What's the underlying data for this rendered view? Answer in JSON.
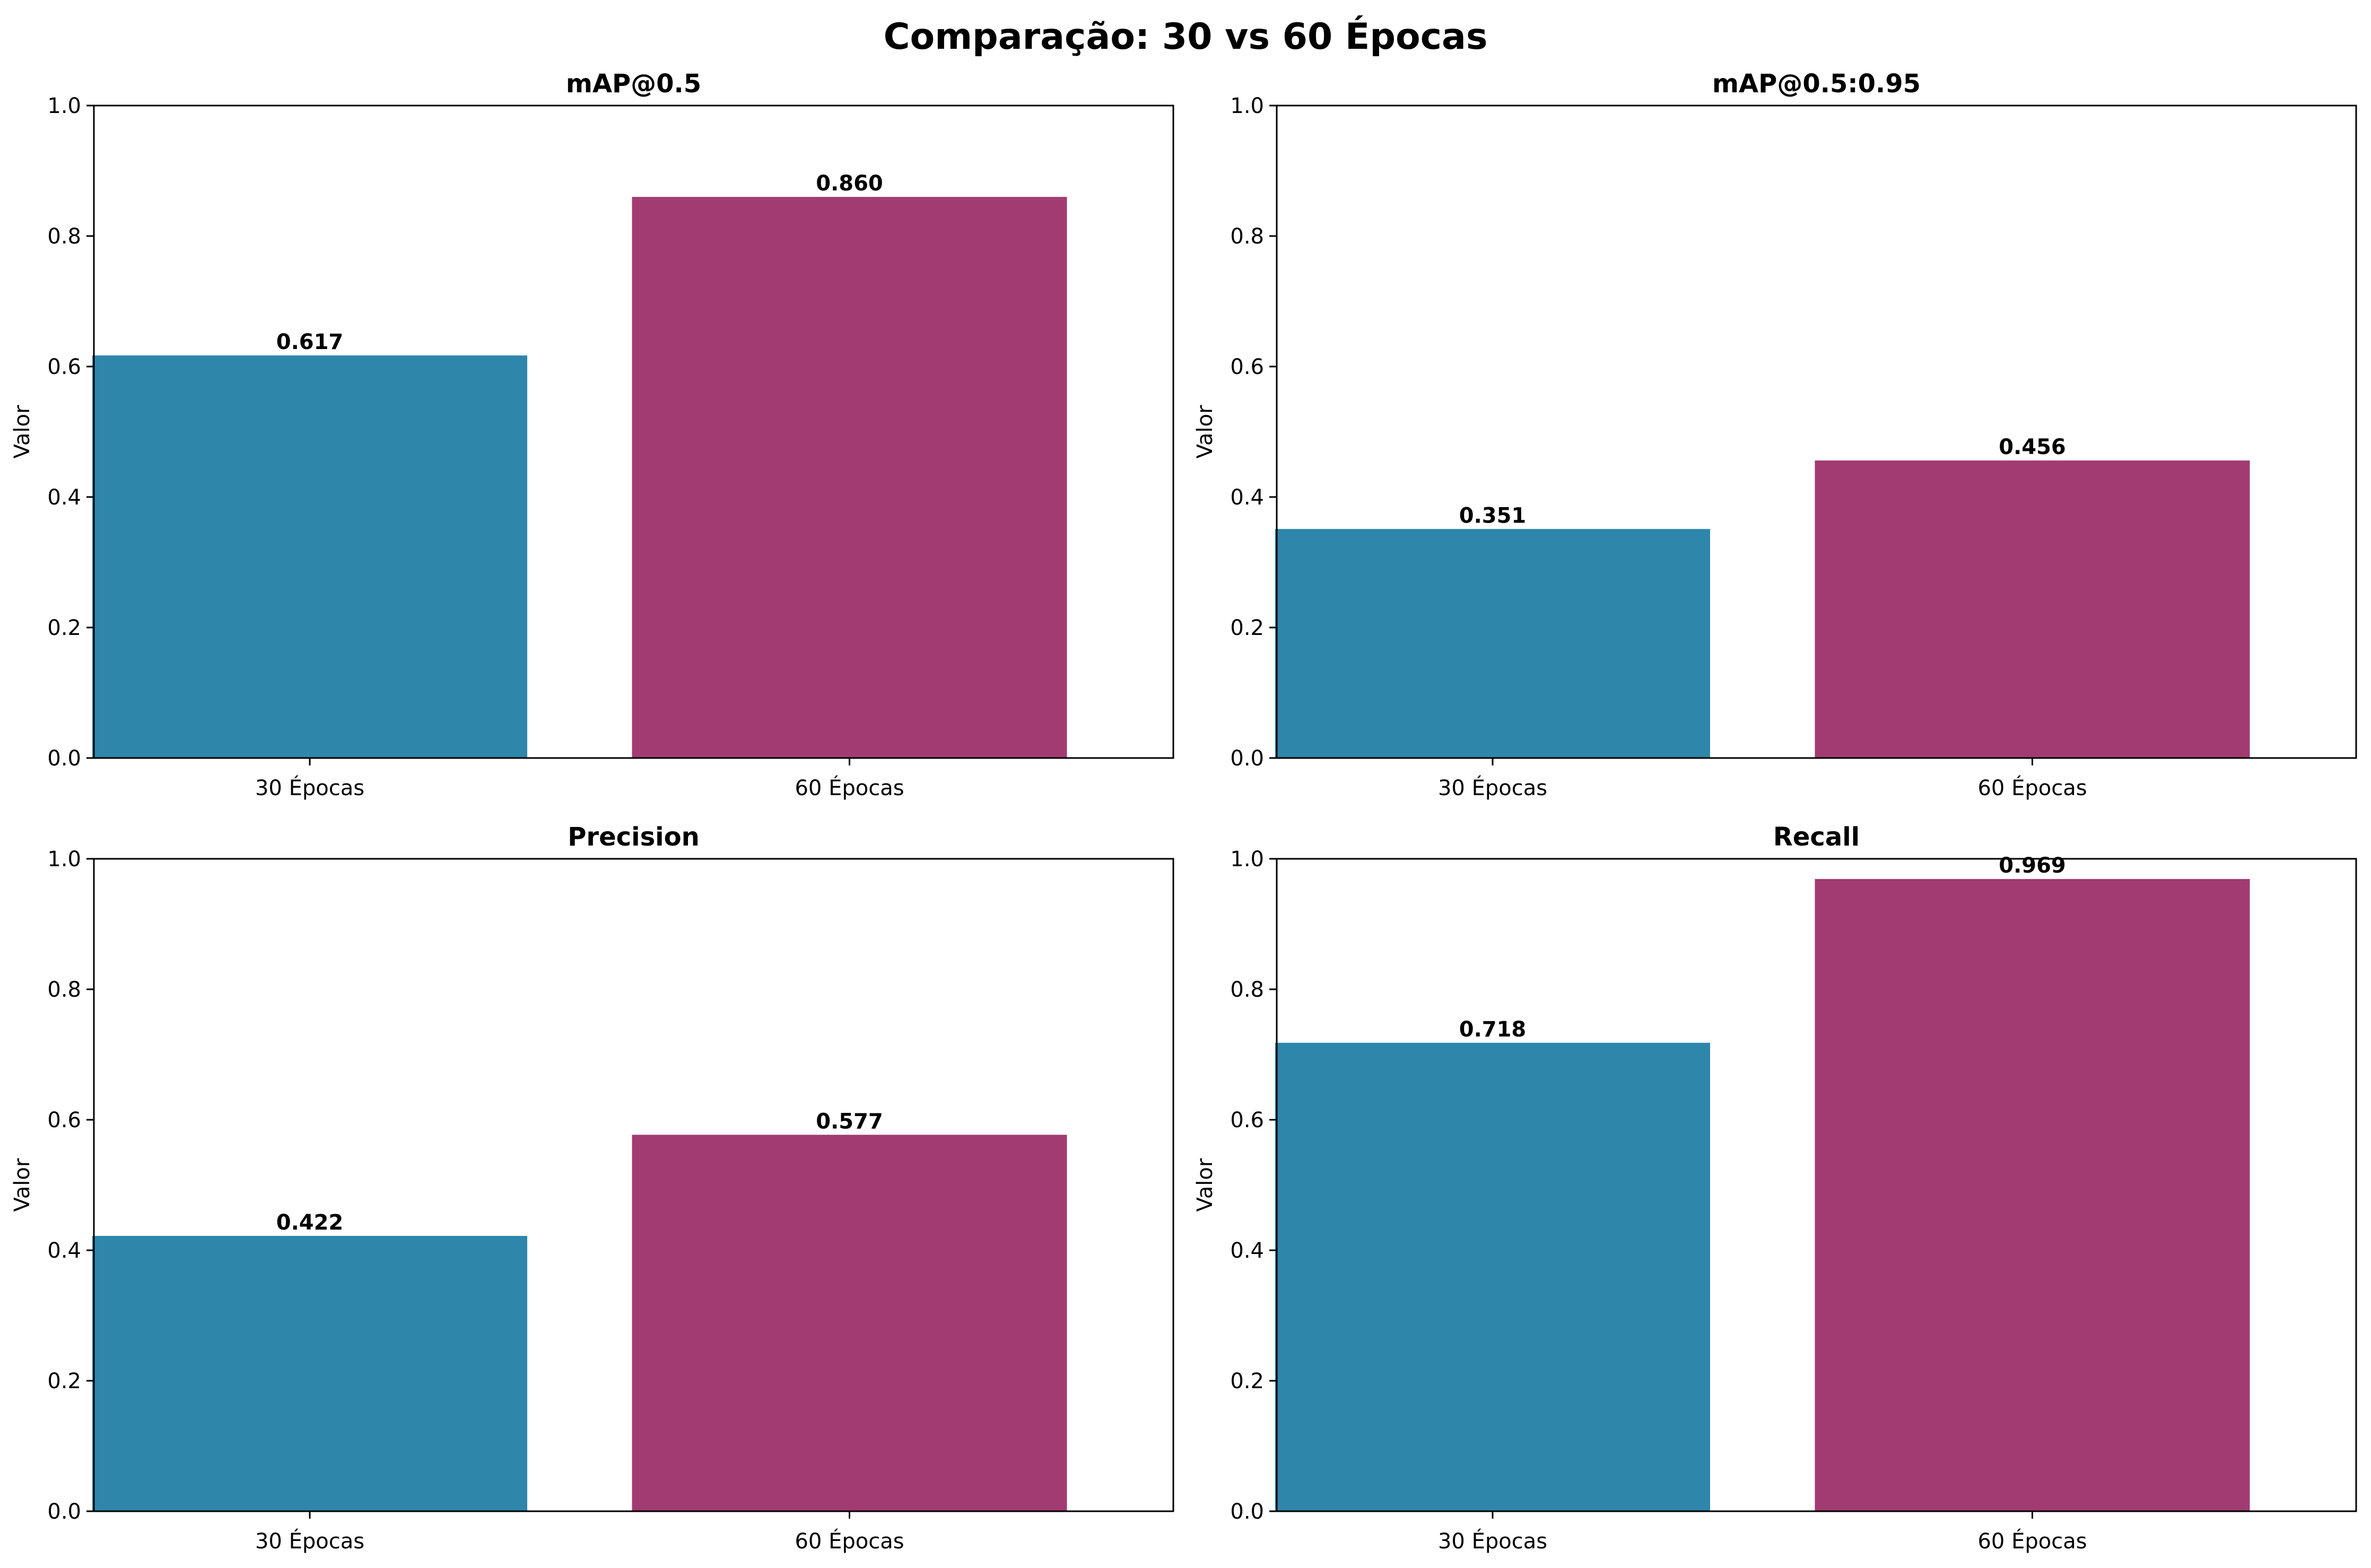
{
  "figure": {
    "title": "Comparação: 30 vs 60 Épocas"
  },
  "chart_data": [
    {
      "type": "bar",
      "title": "mAP@0.5",
      "xlabel": "",
      "ylabel": "Valor",
      "categories": [
        "30 Épocas",
        "60 Épocas"
      ],
      "values": [
        0.617,
        0.86
      ],
      "value_labels": [
        "0.617",
        "0.860"
      ],
      "colors": [
        "#2E86AB",
        "#A23B72"
      ],
      "ylim": [
        0,
        1.0
      ],
      "yticks": [
        0.0,
        0.2,
        0.4,
        0.6,
        0.8,
        1.0
      ],
      "ytick_labels": [
        "0.0",
        "0.2",
        "0.4",
        "0.6",
        "0.8",
        "1.0"
      ],
      "grid": false,
      "legend": "none"
    },
    {
      "type": "bar",
      "title": "mAP@0.5:0.95",
      "xlabel": "",
      "ylabel": "Valor",
      "categories": [
        "30 Épocas",
        "60 Épocas"
      ],
      "values": [
        0.351,
        0.456
      ],
      "value_labels": [
        "0.351",
        "0.456"
      ],
      "colors": [
        "#2E86AB",
        "#A23B72"
      ],
      "ylim": [
        0,
        1.0
      ],
      "yticks": [
        0.0,
        0.2,
        0.4,
        0.6,
        0.8,
        1.0
      ],
      "ytick_labels": [
        "0.0",
        "0.2",
        "0.4",
        "0.6",
        "0.8",
        "1.0"
      ],
      "grid": false,
      "legend": "none"
    },
    {
      "type": "bar",
      "title": "Precision",
      "xlabel": "",
      "ylabel": "Valor",
      "categories": [
        "30 Épocas",
        "60 Épocas"
      ],
      "values": [
        0.422,
        0.577
      ],
      "value_labels": [
        "0.422",
        "0.577"
      ],
      "colors": [
        "#2E86AB",
        "#A23B72"
      ],
      "ylim": [
        0,
        1.0
      ],
      "yticks": [
        0.0,
        0.2,
        0.4,
        0.6,
        0.8,
        1.0
      ],
      "ytick_labels": [
        "0.0",
        "0.2",
        "0.4",
        "0.6",
        "0.8",
        "1.0"
      ],
      "grid": false,
      "legend": "none"
    },
    {
      "type": "bar",
      "title": "Recall",
      "xlabel": "",
      "ylabel": "Valor",
      "categories": [
        "30 Épocas",
        "60 Épocas"
      ],
      "values": [
        0.718,
        0.969
      ],
      "value_labels": [
        "0.718",
        "0.969"
      ],
      "colors": [
        "#2E86AB",
        "#A23B72"
      ],
      "ylim": [
        0,
        1.0
      ],
      "yticks": [
        0.0,
        0.2,
        0.4,
        0.6,
        0.8,
        1.0
      ],
      "ytick_labels": [
        "0.0",
        "0.2",
        "0.4",
        "0.6",
        "0.8",
        "1.0"
      ],
      "grid": false,
      "legend": "none"
    }
  ]
}
